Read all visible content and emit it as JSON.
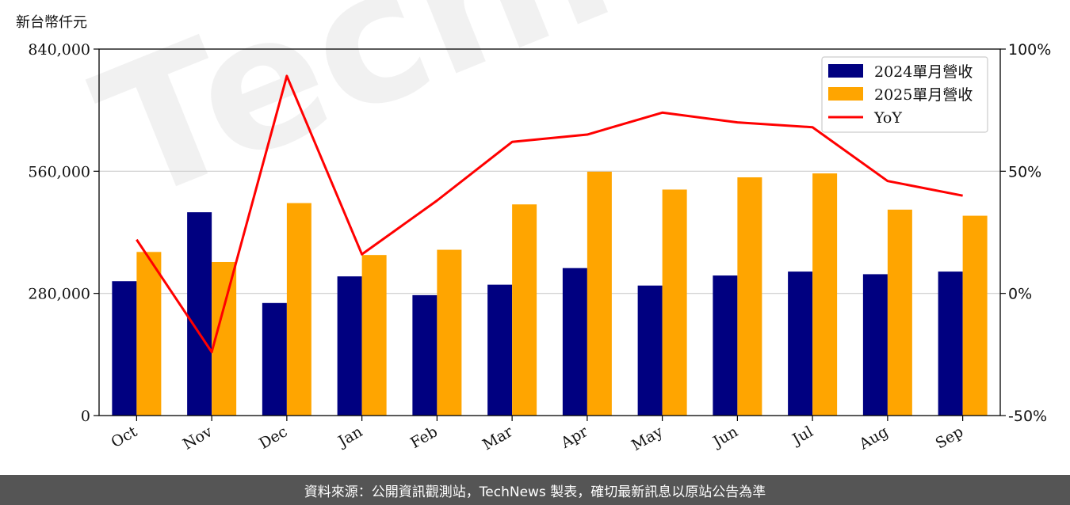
{
  "unit_label": "新台幣仟元",
  "footer": "資料來源：公開資訊觀測站，TechNews 製表，確切最新訊息以原站公告為準",
  "watermark": "TechNews",
  "chart_data": {
    "type": "bar",
    "categories": [
      "Oct",
      "Nov",
      "Dec",
      "Jan",
      "Feb",
      "Mar",
      "Apr",
      "May",
      "Jun",
      "Jul",
      "Aug",
      "Sep"
    ],
    "series": [
      {
        "name": "2024單月營收",
        "type": "bar",
        "axis": "left",
        "color": "#000080",
        "values": [
          308000,
          466000,
          258000,
          319000,
          276000,
          300000,
          338000,
          298000,
          321000,
          330000,
          324000,
          330000
        ]
      },
      {
        "name": "2025單月營收",
        "type": "bar",
        "axis": "left",
        "color": "#FFA500",
        "values": [
          375000,
          352000,
          487000,
          368000,
          380000,
          484000,
          559000,
          518000,
          546000,
          555000,
          472000,
          458000
        ]
      },
      {
        "name": "YoY",
        "type": "line",
        "axis": "right",
        "color": "#FF0000",
        "values": [
          22,
          -24,
          89,
          16,
          38,
          62,
          65,
          74,
          70,
          68,
          46,
          40
        ]
      }
    ],
    "y_left": {
      "min": 0,
      "max": 840000,
      "ticks": [
        "0",
        "280,000",
        "560,000",
        "840,000"
      ],
      "tick_values": [
        0,
        280000,
        560000,
        840000
      ]
    },
    "y_right": {
      "min": -50,
      "max": 100,
      "ticks": [
        "-50%",
        "0%",
        "50%",
        "100%"
      ],
      "tick_values": [
        -50,
        0,
        50,
        100
      ]
    },
    "grid": true,
    "legend_position": "top-right"
  }
}
